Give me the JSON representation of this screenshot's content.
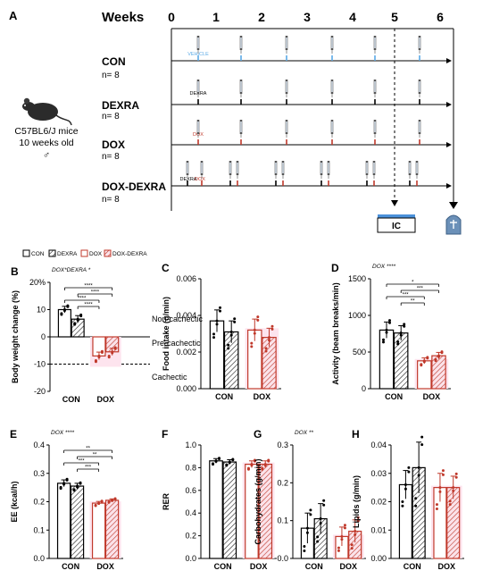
{
  "colors": {
    "con": "#000000",
    "dox": "#c0392b",
    "dox_fill": "#f7c9d9",
    "vehicle": "#5aa9e6",
    "ic_bar": "#4a90d9",
    "tomb": "#6b90b8"
  },
  "panel_a": {
    "letter": "A",
    "weeks_label": "Weeks",
    "week_ticks": [
      "0",
      "1",
      "2",
      "3",
      "4",
      "5",
      "6"
    ],
    "mouse_caption": [
      "C57BL6/J mice",
      "10 weeks old",
      "♂"
    ],
    "groups": [
      {
        "name": "CON",
        "n": "n= 8",
        "first_label": "VEHICLE"
      },
      {
        "name": "DEXRA",
        "n": "n= 8",
        "first_label": "DEXRA"
      },
      {
        "name": "DOX",
        "n": "n= 8",
        "first_label": "DOX"
      },
      {
        "name": "DOX-DEXRA",
        "n": "n= 8",
        "first_label": "DEXRA DOX"
      }
    ],
    "ic_label": "IC"
  },
  "legend": [
    "CON",
    "DEXRA",
    "DOX",
    "DOX-DEXRA"
  ],
  "panels": {
    "B": {
      "letter": "B",
      "ylabel": "Body weight change (%)",
      "stat": "DOX*DEXRA *",
      "yticks": [
        "20%",
        "10",
        "0",
        "-10",
        "-20"
      ],
      "xcats": [
        "CON",
        "DOX"
      ],
      "zones": [
        "Non-cachectic",
        "Pre-cachectic",
        "Cachectic"
      ],
      "sig": [
        "****",
        "****",
        "****",
        "****"
      ]
    },
    "C": {
      "letter": "C",
      "ylabel": "Food intake (g/min)",
      "stat": "",
      "yticks": [
        "0.006",
        "0.004",
        "0.002",
        "0.000"
      ],
      "xcats": [
        "CON",
        "DOX"
      ],
      "sig": []
    },
    "D": {
      "letter": "D",
      "ylabel": "Activity (beam breaks/min)",
      "stat": "DOX ****",
      "yticks": [
        "1500",
        "1000",
        "500",
        "0"
      ],
      "xcats": [
        "CON",
        "DOX"
      ],
      "sig": [
        "*",
        "***",
        "***",
        "**"
      ]
    },
    "E": {
      "letter": "E",
      "ylabel": "EE (kcal/h)",
      "stat": "DOX ****",
      "yticks": [
        "0.4",
        "0.3",
        "0.2",
        "0.1",
        "0.0"
      ],
      "xcats": [
        "CON",
        "DOX"
      ],
      "sig": [
        "**",
        "**",
        "***",
        "***"
      ]
    },
    "F": {
      "letter": "F",
      "ylabel": "RER",
      "stat": "",
      "yticks": [
        "1.0",
        "0.8",
        "0.6",
        "0.4",
        "0.2",
        "0.0"
      ],
      "xcats": [
        "CON",
        "DOX"
      ],
      "sig": []
    },
    "G": {
      "letter": "G",
      "ylabel": "Carbohydrates (g/min)",
      "stat": "DOX **",
      "yticks": [
        "0.3",
        "0.2",
        "0.1",
        "0.0"
      ],
      "xcats": [
        "CON",
        "DOX"
      ],
      "sig": []
    },
    "H": {
      "letter": "H",
      "ylabel": "Lipids (g/min)",
      "stat": "",
      "yticks": [
        "0.04",
        "0.03",
        "0.02",
        "0.01",
        "0.00"
      ],
      "xcats": [
        "CON",
        "DOX"
      ],
      "sig": []
    }
  },
  "chart_data": [
    {
      "panel": "B",
      "type": "bar",
      "categories": [
        "CON",
        "DEXRA",
        "DOX",
        "DOX-DEXRA"
      ],
      "values": [
        10,
        6.5,
        -7,
        -5.5
      ],
      "errors": [
        1.2,
        1.3,
        1.4,
        1.3
      ],
      "ylim": [
        -20,
        20
      ],
      "ylabel": "Body weight change (%)"
    },
    {
      "panel": "C",
      "type": "bar",
      "categories": [
        "CON",
        "DEXRA",
        "DOX",
        "DOX-DEXRA"
      ],
      "values": [
        0.0037,
        0.0031,
        0.0032,
        0.0028
      ],
      "errors": [
        0.0006,
        0.0006,
        0.0006,
        0.0005
      ],
      "ylim": [
        0,
        0.006
      ],
      "ylabel": "Food intake (g/min)"
    },
    {
      "panel": "D",
      "type": "bar",
      "categories": [
        "CON",
        "DEXRA",
        "DOX",
        "DOX-DEXRA"
      ],
      "values": [
        800,
        760,
        380,
        450
      ],
      "errors": [
        110,
        100,
        40,
        45
      ],
      "ylim": [
        0,
        1500
      ],
      "ylabel": "Activity (beam breaks/min)"
    },
    {
      "panel": "E",
      "type": "bar",
      "categories": [
        "CON",
        "DEXRA",
        "DOX",
        "DOX-DEXRA"
      ],
      "values": [
        0.265,
        0.255,
        0.195,
        0.205
      ],
      "errors": [
        0.012,
        0.01,
        0.006,
        0.005
      ],
      "ylim": [
        0,
        0.4
      ],
      "ylabel": "EE (kcal/h)"
    },
    {
      "panel": "F",
      "type": "bar",
      "categories": [
        "CON",
        "DEXRA",
        "DOX",
        "DOX-DEXRA"
      ],
      "values": [
        0.86,
        0.85,
        0.83,
        0.83
      ],
      "errors": [
        0.02,
        0.02,
        0.03,
        0.03
      ],
      "ylim": [
        0,
        1.0
      ],
      "ylabel": "RER"
    },
    {
      "panel": "G",
      "type": "bar",
      "categories": [
        "CON",
        "DEXRA",
        "DOX",
        "DOX-DEXRA"
      ],
      "values": [
        0.08,
        0.105,
        0.058,
        0.072
      ],
      "errors": [
        0.04,
        0.04,
        0.025,
        0.03
      ],
      "ylim": [
        0,
        0.3
      ],
      "ylabel": "Carbohydrates (g/min)"
    },
    {
      "panel": "H",
      "type": "bar",
      "categories": [
        "CON",
        "DEXRA",
        "DOX",
        "DOX-DEXRA"
      ],
      "values": [
        0.026,
        0.032,
        0.025,
        0.025
      ],
      "errors": [
        0.005,
        0.009,
        0.005,
        0.004
      ],
      "ylim": [
        0,
        0.04
      ],
      "ylabel": "Lipids (g/min)"
    }
  ]
}
